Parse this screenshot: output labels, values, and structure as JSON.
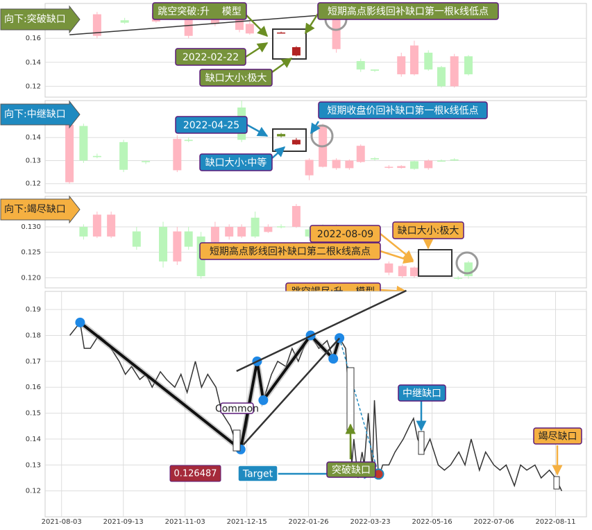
{
  "chart_data": [
    {
      "type": "candlestick",
      "label": "向下:突破缺口",
      "color": "#77933c",
      "text_color": "#ffffff",
      "up_color": "#ffb6c1",
      "down_color": "#b9f5b9",
      "highlight": [
        7,
        8
      ],
      "highlight_colors": [
        "#b22222",
        "#b22222"
      ],
      "xlim": [
        0,
        100
      ],
      "ylim": [
        0.111,
        0.189
      ],
      "yticks": [
        0.12,
        0.14,
        0.16
      ],
      "x": [
        9.6,
        14.7,
        20.5,
        26.5,
        31.4,
        35.9,
        37.8,
        43.6,
        46.4,
        53.8,
        58.3,
        60.9,
        65.8,
        68.2,
        70.8,
        73.2,
        75.6,
        78.2
      ],
      "open": [
        0.162,
        0.175,
        0.174,
        0.162,
        0.172,
        0.167,
        0.164,
        0.1645,
        0.1457,
        0.151,
        0.141,
        0.134,
        0.13,
        0.13,
        0.148,
        0.136,
        0.12,
        0.145
      ],
      "high": [
        0.182,
        0.177,
        0.183,
        0.182,
        0.182,
        0.183,
        0.174,
        0.1655,
        0.1535,
        0.183,
        0.143,
        0.134,
        0.148,
        0.158,
        0.15,
        0.137,
        0.147,
        0.146
      ],
      "low": [
        0.16,
        0.172,
        0.173,
        0.16,
        0.17,
        0.165,
        0.163,
        0.164,
        0.145,
        0.148,
        0.132,
        0.132,
        0.128,
        0.129,
        0.133,
        0.119,
        0.119,
        0.129
      ],
      "close": [
        0.18,
        0.173,
        0.181,
        0.18,
        0.18,
        0.18,
        0.172,
        0.1648,
        0.1526,
        0.18,
        0.134,
        0.133,
        0.145,
        0.154,
        0.134,
        0.12,
        0.145,
        0.13
      ],
      "trend_lines": [
        [
          [
            4.5,
            0.1629
          ],
          [
            50,
            0.1789
          ]
        ]
      ],
      "annotations": [
        "跳空突破:升    模型",
        "短期高点影线回补缺口第一根k线低点",
        "2022-02-22",
        "缺口大小:极大"
      ]
    },
    {
      "type": "candlestick",
      "label": "向下:中继缺口",
      "color": "#1f8ac0",
      "text_color": "#ffffff",
      "up_color": "#ffb6c1",
      "down_color": "#b9f5b9",
      "highlight": [
        8,
        9
      ],
      "highlight_colors": [
        "#6b8e23",
        "#b22222"
      ],
      "xlim": [
        0,
        100
      ],
      "ylim": [
        0.116,
        0.156
      ],
      "yticks": [
        0.12,
        0.13,
        0.14
      ],
      "x": [
        4.5,
        7.1,
        9.6,
        14.5,
        18.6,
        24.4,
        26.5,
        36.3,
        43.6,
        46.4,
        48.8,
        51.3,
        53.8,
        56.2,
        58.3,
        60.9,
        63.5,
        65.8,
        68.2,
        70.8,
        73.2,
        75.6
      ],
      "open": [
        0.1206,
        0.145,
        0.132,
        0.138,
        0.1298,
        0.1258,
        0.139,
        0.153,
        0.1415,
        0.137,
        0.1236,
        0.1273,
        0.1267,
        0.1267,
        0.1294,
        0.131,
        0.127,
        0.1268,
        0.1297,
        0.1267,
        0.13,
        0.1305
      ],
      "high": [
        0.147,
        0.146,
        0.133,
        0.139,
        0.13,
        0.141,
        0.14,
        0.156,
        0.142,
        0.1398,
        0.131,
        0.146,
        0.131,
        0.1305,
        0.137,
        0.1315,
        0.128,
        0.128,
        0.13,
        0.1305,
        0.1305,
        0.131
      ],
      "low": [
        0.12,
        0.129,
        0.131,
        0.125,
        0.1285,
        0.125,
        0.138,
        0.138,
        0.14,
        0.1368,
        0.1215,
        0.127,
        0.126,
        0.126,
        0.129,
        0.13,
        0.1265,
        0.1265,
        0.126,
        0.126,
        0.1295,
        0.1298
      ],
      "close": [
        0.1455,
        0.13,
        0.1315,
        0.126,
        0.1293,
        0.1394,
        0.1385,
        0.139,
        0.1405,
        0.139,
        0.1303,
        0.1448,
        0.1303,
        0.13,
        0.1364,
        0.1305,
        0.1273,
        0.1276,
        0.1264,
        0.13,
        0.1296,
        0.13
      ],
      "annotations": [
        "2022-04-25",
        "短期收盘价回补缺口第一根k线低点",
        "缺口大小:中等"
      ]
    },
    {
      "type": "candlestick",
      "label": "向下:竭尽缺口",
      "color": "#f5b041",
      "text_color": "#222222",
      "up_color": "#ffb6c1",
      "down_color": "#b9f5b9",
      "xlim": [
        0,
        100
      ],
      "ylim": [
        0.118,
        0.136
      ],
      "yticks": [
        {
          "value": 0.12,
          "label": "0.120"
        },
        {
          "value": 0.125,
          "label": "0.125"
        },
        {
          "value": 0.13,
          "label": "0.130"
        }
      ],
      "x": [
        7.1,
        9.6,
        12.2,
        16.9,
        21.8,
        24.4,
        26.5,
        28.8,
        31.4,
        34,
        36.3,
        38.8,
        41.2,
        43.6,
        46.4,
        48.8,
        51.3,
        53.8,
        63.5,
        66,
        68.2,
        76.3,
        78.2
      ],
      "open": [
        0.13,
        0.1281,
        0.1281,
        0.1291,
        0.13,
        0.1232,
        0.1291,
        0.1281,
        0.127,
        0.1281,
        0.1281,
        0.1318,
        0.129,
        0.1301,
        0.13,
        0.1295,
        0.13,
        0.13,
        0.121,
        0.1203,
        0.1203,
        0.12,
        0.123
      ],
      "high": [
        0.1305,
        0.133,
        0.133,
        0.13,
        0.131,
        0.13,
        0.13,
        0.129,
        0.131,
        0.1305,
        0.1305,
        0.133,
        0.1305,
        0.1305,
        0.1345,
        0.13,
        0.1305,
        0.1305,
        0.1232,
        0.1226,
        0.1222,
        0.1203,
        0.1233
      ],
      "low": [
        0.1275,
        0.1278,
        0.1278,
        0.1255,
        0.122,
        0.1225,
        0.1255,
        0.1198,
        0.1265,
        0.1275,
        0.1278,
        0.1278,
        0.1288,
        0.1297,
        0.1298,
        0.1278,
        0.1265,
        0.125,
        0.1205,
        0.12,
        0.12,
        0.1196,
        0.1198
      ],
      "close": [
        0.1281,
        0.1324,
        0.1324,
        0.1261,
        0.1232,
        0.1291,
        0.1261,
        0.1203,
        0.13,
        0.13,
        0.13,
        0.1281,
        0.13,
        0.1299,
        0.1341,
        0.1281,
        0.127,
        0.1257,
        0.1228,
        0.1223,
        0.122,
        0.1198,
        0.1203
      ],
      "annotations": [
        "2022-08-09",
        "缺口大小:极大",
        "短期高点影线回补缺口第二根k线高点",
        "跳空竭尽:升    模型"
      ]
    },
    {
      "type": "line",
      "color": "#333333",
      "xlim": [
        -8,
        255
      ],
      "ylim": [
        0.11,
        0.197
      ],
      "yticks": [
        0.12,
        0.13,
        0.14,
        0.15,
        0.16,
        0.17,
        0.18,
        0.19
      ],
      "xticks": [
        {
          "value": 0,
          "label": "2021-08-03"
        },
        {
          "value": 30,
          "label": "2021-09-13"
        },
        {
          "value": 60,
          "label": "2021-11-03"
        },
        {
          "value": 90,
          "label": "2021-12-15"
        },
        {
          "value": 120,
          "label": "2022-01-26"
        },
        {
          "value": 150,
          "label": "2022-03-23"
        },
        {
          "value": 180,
          "label": "2022-05-16"
        },
        {
          "value": 210,
          "label": "2022-07-06"
        },
        {
          "value": 240,
          "label": "2022-08-11"
        }
      ],
      "x": [
        4,
        9,
        11,
        14,
        18,
        21,
        24,
        28,
        31,
        34,
        38,
        41,
        44,
        48,
        51,
        55,
        58,
        61,
        65,
        68,
        71,
        75,
        78,
        82,
        85,
        87,
        90,
        95,
        98,
        102,
        105,
        109,
        112,
        115,
        119,
        121,
        125,
        129,
        132,
        135,
        138,
        140,
        141,
        142,
        144,
        146,
        147,
        149,
        151,
        152,
        154,
        156,
        159,
        162,
        166,
        169,
        171,
        173,
        176,
        179,
        183,
        186,
        189,
        193,
        196,
        199,
        203,
        206,
        210,
        213,
        216,
        220,
        223,
        226,
        230,
        233,
        237,
        240,
        243
      ],
      "values": [
        0.18,
        0.185,
        0.175,
        0.175,
        0.18,
        0.178,
        0.175,
        0.17,
        0.165,
        0.168,
        0.163,
        0.165,
        0.16,
        0.166,
        0.163,
        0.16,
        0.165,
        0.158,
        0.17,
        0.16,
        0.165,
        0.16,
        0.15,
        0.145,
        0.138,
        0.136,
        0.145,
        0.17,
        0.155,
        0.165,
        0.17,
        0.168,
        0.175,
        0.17,
        0.178,
        0.18,
        0.175,
        0.178,
        0.171,
        0.179,
        0.175,
        0.15,
        0.13,
        0.14,
        0.125,
        0.135,
        0.13,
        0.15,
        0.128,
        0.155,
        0.125,
        0.13,
        0.13,
        0.135,
        0.14,
        0.145,
        0.148,
        0.14,
        0.135,
        0.14,
        0.13,
        0.128,
        0.13,
        0.135,
        0.13,
        0.14,
        0.128,
        0.135,
        0.13,
        0.128,
        0.13,
        0.122,
        0.13,
        0.128,
        0.13,
        0.125,
        0.128,
        0.125,
        0.12
      ],
      "pattern_points": {
        "x": [
          9,
          87,
          95,
          98,
          121,
          132,
          135
        ],
        "values": [
          0.185,
          0.136,
          0.17,
          0.155,
          0.18,
          0.171,
          0.179
        ]
      },
      "target": {
        "x": 154,
        "value": 0.126487
      },
      "trend_lines": [
        [
          [
            85,
            0.1662
          ],
          [
            167.5,
            0.1973
          ]
        ],
        [
          [
            88.3,
            0.1378
          ],
          [
            135,
            0.1789
          ]
        ]
      ],
      "annotations": [
        "Common",
        "Target",
        "突破缺口",
        "中继缺口",
        "竭尽缺口"
      ]
    }
  ]
}
